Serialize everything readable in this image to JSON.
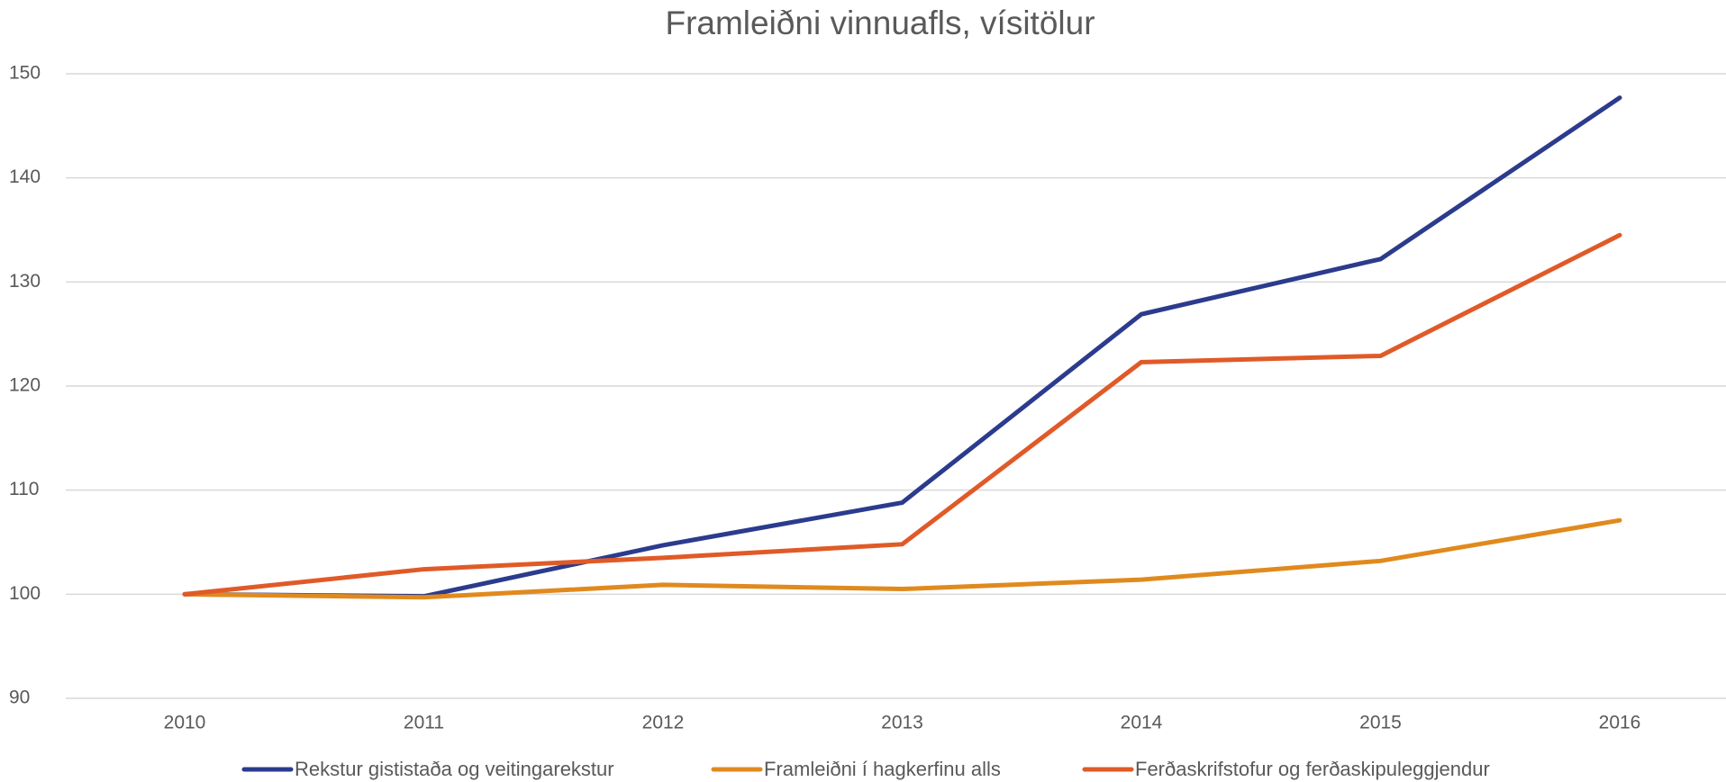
{
  "chart_data": {
    "type": "line",
    "title": "Framleiðni vinnuafls, vísitölur",
    "categories": [
      "2010",
      "2011",
      "2012",
      "2013",
      "2014",
      "2015",
      "2016"
    ],
    "series": [
      {
        "name": "Rekstur gististaða og veitingarekstur",
        "color": "#2b3b8d",
        "values": [
          100,
          99.8,
          104.7,
          108.8,
          126.9,
          132.2,
          147.7
        ]
      },
      {
        "name": "Framleiðni í hagkerfinu alls",
        "color": "#e08a1e",
        "values": [
          100,
          99.7,
          100.9,
          100.5,
          101.4,
          103.2,
          107.1
        ]
      },
      {
        "name": "Ferðaskrifstofur og ferðaskipuleggjendur",
        "color": "#e05a28",
        "values": [
          100,
          102.4,
          103.5,
          104.8,
          122.3,
          122.9,
          134.5
        ]
      }
    ],
    "ylim": [
      90,
      150
    ],
    "yticks": [
      90,
      100,
      110,
      120,
      130,
      140,
      150
    ],
    "grid": true,
    "legend": "bottom"
  }
}
